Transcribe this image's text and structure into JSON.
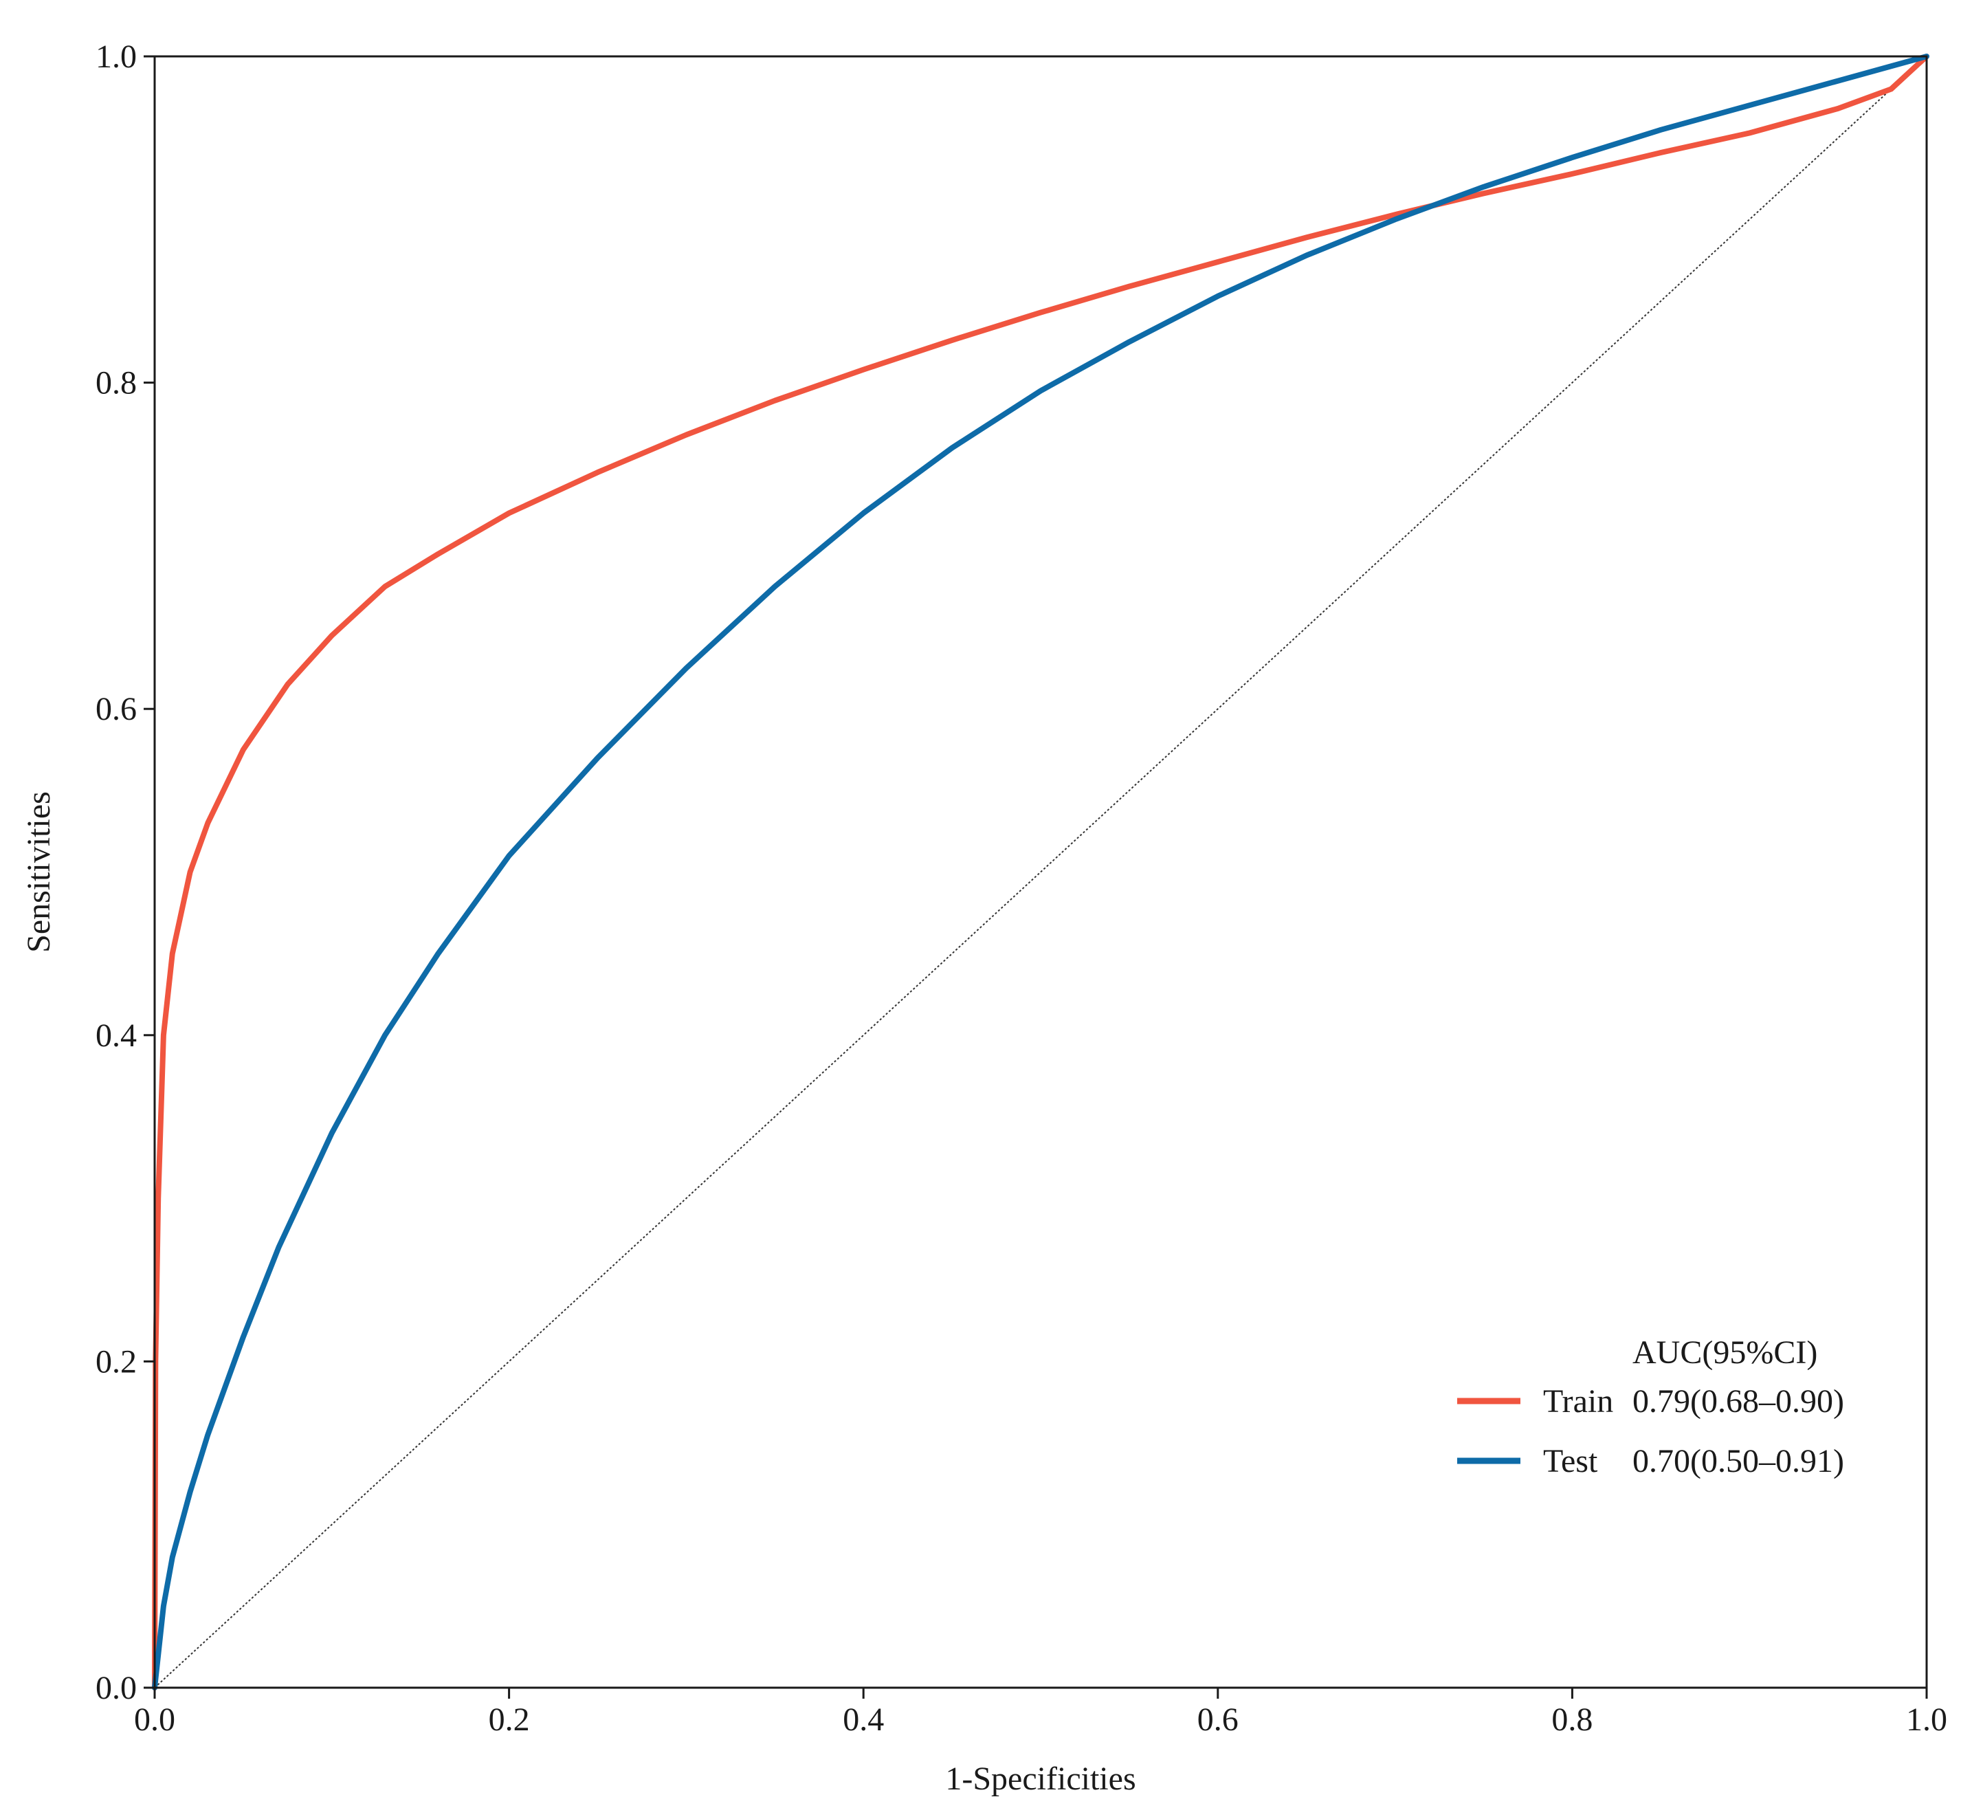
{
  "chart_data": {
    "type": "line",
    "title": "",
    "xlabel": "1-Specificities",
    "ylabel": "Sensitivities",
    "xlim": [
      0,
      1
    ],
    "ylim": [
      0,
      1
    ],
    "x_ticks": [
      "0.0",
      "0.2",
      "0.4",
      "0.6",
      "0.8",
      "1.0"
    ],
    "y_ticks": [
      "0.0",
      "0.2",
      "0.4",
      "0.6",
      "0.8",
      "1.0"
    ],
    "grid": false,
    "legend": {
      "placement": "bottom-right",
      "title": "AUC(95%CI)"
    },
    "series": [
      {
        "name": "Train",
        "auc_label": "0.79(0.68–0.90)",
        "color": "#f0553f",
        "x": [
          0,
          0.0005,
          0.002,
          0.005,
          0.01,
          0.02,
          0.03,
          0.05,
          0.075,
          0.1,
          0.13,
          0.16,
          0.2,
          0.25,
          0.3,
          0.35,
          0.4,
          0.45,
          0.5,
          0.55,
          0.6,
          0.65,
          0.7,
          0.75,
          0.8,
          0.85,
          0.9,
          0.95,
          0.98,
          1.0
        ],
        "y": [
          0,
          0.2,
          0.3,
          0.4,
          0.45,
          0.5,
          0.53,
          0.575,
          0.615,
          0.645,
          0.675,
          0.695,
          0.72,
          0.745,
          0.768,
          0.789,
          0.808,
          0.826,
          0.843,
          0.859,
          0.874,
          0.889,
          0.903,
          0.916,
          0.928,
          0.941,
          0.953,
          0.968,
          0.98,
          1.0
        ]
      },
      {
        "name": "Test",
        "auc_label": "0.70(0.50–0.91)",
        "color": "#0e6ba8",
        "x": [
          0,
          0.005,
          0.01,
          0.02,
          0.03,
          0.05,
          0.07,
          0.1,
          0.13,
          0.16,
          0.2,
          0.25,
          0.3,
          0.35,
          0.4,
          0.45,
          0.5,
          0.55,
          0.6,
          0.65,
          0.7,
          0.75,
          0.8,
          0.85,
          0.9,
          0.95,
          1.0
        ],
        "y": [
          0,
          0.05,
          0.08,
          0.12,
          0.155,
          0.215,
          0.27,
          0.34,
          0.4,
          0.45,
          0.51,
          0.57,
          0.625,
          0.675,
          0.72,
          0.76,
          0.795,
          0.825,
          0.853,
          0.878,
          0.9,
          0.92,
          0.938,
          0.955,
          0.97,
          0.985,
          1.0
        ]
      }
    ],
    "reference_line": {
      "x": [
        0,
        1
      ],
      "y": [
        0,
        1
      ],
      "style": "dotted",
      "color": "#333333"
    }
  }
}
